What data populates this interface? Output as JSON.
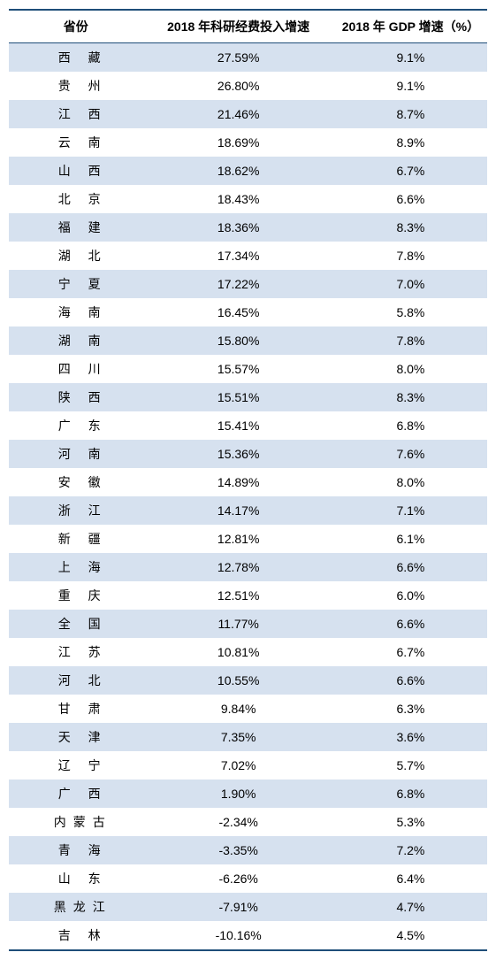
{
  "columns": [
    "省份",
    "2018 年科研经费投入增速",
    "2018 年 GDP 增速（%）"
  ],
  "col_widths": [
    "28%",
    "40%",
    "32%"
  ],
  "header_bg": "#ffffff",
  "odd_row_bg": "#d6e1ef",
  "even_row_bg": "#ffffff",
  "border_color": "#1f4e79",
  "font_size": 14,
  "rows": [
    {
      "p": "西 藏",
      "a": "27.59%",
      "b": "9.1%"
    },
    {
      "p": "贵 州",
      "a": "26.80%",
      "b": "9.1%"
    },
    {
      "p": "江 西",
      "a": "21.46%",
      "b": "8.7%"
    },
    {
      "p": "云 南",
      "a": "18.69%",
      "b": "8.9%"
    },
    {
      "p": "山 西",
      "a": "18.62%",
      "b": "6.7%"
    },
    {
      "p": "北 京",
      "a": "18.43%",
      "b": "6.6%"
    },
    {
      "p": "福 建",
      "a": "18.36%",
      "b": "8.3%"
    },
    {
      "p": "湖 北",
      "a": "17.34%",
      "b": "7.8%"
    },
    {
      "p": "宁 夏",
      "a": "17.22%",
      "b": "7.0%"
    },
    {
      "p": "海 南",
      "a": "16.45%",
      "b": "5.8%"
    },
    {
      "p": "湖 南",
      "a": "15.80%",
      "b": "7.8%"
    },
    {
      "p": "四 川",
      "a": "15.57%",
      "b": "8.0%"
    },
    {
      "p": "陕 西",
      "a": "15.51%",
      "b": "8.3%"
    },
    {
      "p": "广 东",
      "a": "15.41%",
      "b": "6.8%"
    },
    {
      "p": "河 南",
      "a": "15.36%",
      "b": "7.6%"
    },
    {
      "p": "安 徽",
      "a": "14.89%",
      "b": "8.0%"
    },
    {
      "p": "浙 江",
      "a": "14.17%",
      "b": "7.1%"
    },
    {
      "p": "新 疆",
      "a": "12.81%",
      "b": "6.1%"
    },
    {
      "p": "上 海",
      "a": "12.78%",
      "b": "6.6%"
    },
    {
      "p": "重 庆",
      "a": "12.51%",
      "b": "6.0%"
    },
    {
      "p": "全 国",
      "a": "11.77%",
      "b": "6.6%"
    },
    {
      "p": "江 苏",
      "a": "10.81%",
      "b": "6.7%"
    },
    {
      "p": "河 北",
      "a": "10.55%",
      "b": "6.6%"
    },
    {
      "p": "甘 肃",
      "a": "9.84%",
      "b": "6.3%"
    },
    {
      "p": "天 津",
      "a": "7.35%",
      "b": "3.6%"
    },
    {
      "p": "辽 宁",
      "a": "7.02%",
      "b": "5.7%"
    },
    {
      "p": "广 西",
      "a": "1.90%",
      "b": "6.8%"
    },
    {
      "p": "内蒙古",
      "a": "-2.34%",
      "b": "5.3%",
      "three": true
    },
    {
      "p": "青 海",
      "a": "-3.35%",
      "b": "7.2%"
    },
    {
      "p": "山 东",
      "a": "-6.26%",
      "b": "6.4%"
    },
    {
      "p": "黑龙江",
      "a": "-7.91%",
      "b": "4.7%",
      "three": true
    },
    {
      "p": "吉 林",
      "a": "-10.16%",
      "b": "4.5%"
    }
  ]
}
